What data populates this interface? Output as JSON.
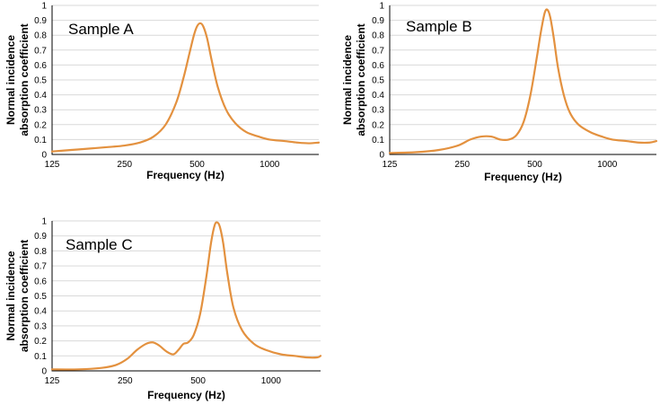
{
  "colors": {
    "curve": "#E3913F",
    "grid": "#D9D9D9",
    "axis": "#000000"
  },
  "chart_data": [
    {
      "type": "line",
      "title": "Sample A",
      "xlabel": "Frequency (Hz)",
      "ylabel": [
        "Normal incidence",
        "absorption coefficient"
      ],
      "x_scale": "log",
      "xlim": [
        125,
        1600
      ],
      "ylim": [
        0,
        1
      ],
      "grid": true,
      "x_ticks": [
        125,
        250,
        500,
        1000
      ],
      "x_tick_labels": [
        "125",
        "250",
        "500",
        "1000"
      ],
      "y_ticks": [
        0,
        0.1,
        0.2,
        0.3,
        0.4,
        0.5,
        0.6,
        0.7,
        0.8,
        0.9,
        1
      ],
      "y_tick_labels": [
        "0",
        "0.1",
        "0.2",
        "0.3",
        "0.4",
        "0.5",
        "0.6",
        "0.7",
        "0.8",
        "0.9",
        "1"
      ],
      "series": [
        {
          "x": [
            125,
            150,
            180,
            215,
            250,
            290,
            330,
            370,
            410,
            440,
            465,
            485,
            500,
            515,
            530,
            550,
            575,
            610,
            660,
            720,
            800,
            900,
            1000,
            1150,
            1300,
            1450,
            1600
          ],
          "y": [
            0.02,
            0.03,
            0.04,
            0.05,
            0.06,
            0.08,
            0.12,
            0.2,
            0.35,
            0.52,
            0.68,
            0.8,
            0.86,
            0.88,
            0.86,
            0.78,
            0.63,
            0.45,
            0.3,
            0.21,
            0.15,
            0.12,
            0.1,
            0.09,
            0.08,
            0.075,
            0.08
          ]
        }
      ]
    },
    {
      "type": "line",
      "title": "Sample B",
      "xlabel": "Frequency (Hz)",
      "ylabel": [
        "Normal incidence",
        "absorption coefficient"
      ],
      "x_scale": "log",
      "xlim": [
        125,
        1600
      ],
      "ylim": [
        0,
        1
      ],
      "grid": true,
      "x_ticks": [
        125,
        250,
        500,
        1000
      ],
      "x_tick_labels": [
        "125",
        "250",
        "500",
        "1000"
      ],
      "y_ticks": [
        0,
        0.1,
        0.2,
        0.3,
        0.4,
        0.5,
        0.6,
        0.7,
        0.8,
        0.9,
        1
      ],
      "y_tick_labels": [
        "0",
        "0.1",
        "0.2",
        "0.3",
        "0.4",
        "0.5",
        "0.6",
        "0.7",
        "0.8",
        "0.9",
        "1"
      ],
      "series": [
        {
          "x": [
            125,
            160,
            200,
            240,
            270,
            300,
            330,
            360,
            390,
            420,
            450,
            480,
            510,
            530,
            550,
            565,
            580,
            600,
            625,
            660,
            700,
            760,
            850,
            950,
            1050,
            1200,
            1350,
            1500,
            1600
          ],
          "y": [
            0.01,
            0.015,
            0.03,
            0.06,
            0.1,
            0.12,
            0.12,
            0.1,
            0.1,
            0.13,
            0.22,
            0.4,
            0.65,
            0.82,
            0.95,
            0.97,
            0.92,
            0.78,
            0.58,
            0.4,
            0.28,
            0.2,
            0.15,
            0.12,
            0.1,
            0.09,
            0.08,
            0.08,
            0.09
          ]
        }
      ]
    },
    {
      "type": "line",
      "title": "Sample C",
      "xlabel": "Frequency (Hz)",
      "ylabel": [
        "Normal incidence",
        "absorption coefficient"
      ],
      "x_scale": "log",
      "xlim": [
        125,
        1600
      ],
      "ylim": [
        0,
        1
      ],
      "grid": true,
      "x_ticks": [
        125,
        250,
        500,
        1000
      ],
      "x_tick_labels": [
        "125",
        "250",
        "500",
        "1000"
      ],
      "y_ticks": [
        0,
        0.1,
        0.2,
        0.3,
        0.4,
        0.5,
        0.6,
        0.7,
        0.8,
        0.9,
        1
      ],
      "y_tick_labels": [
        "0",
        "0.1",
        "0.2",
        "0.3",
        "0.4",
        "0.5",
        "0.6",
        "0.7",
        "0.8",
        "0.9",
        "1"
      ],
      "series": [
        {
          "x": [
            125,
            160,
            200,
            230,
            255,
            280,
            305,
            325,
            345,
            370,
            395,
            415,
            435,
            455,
            480,
            510,
            540,
            565,
            585,
            600,
            615,
            635,
            660,
            700,
            760,
            850,
            950,
            1100,
            1250,
            1400,
            1550,
            1600
          ],
          "y": [
            0.01,
            0.01,
            0.02,
            0.04,
            0.08,
            0.14,
            0.18,
            0.19,
            0.17,
            0.13,
            0.11,
            0.14,
            0.18,
            0.19,
            0.24,
            0.38,
            0.62,
            0.85,
            0.97,
            0.99,
            0.96,
            0.85,
            0.65,
            0.42,
            0.27,
            0.18,
            0.14,
            0.11,
            0.1,
            0.09,
            0.09,
            0.1
          ]
        }
      ]
    }
  ]
}
